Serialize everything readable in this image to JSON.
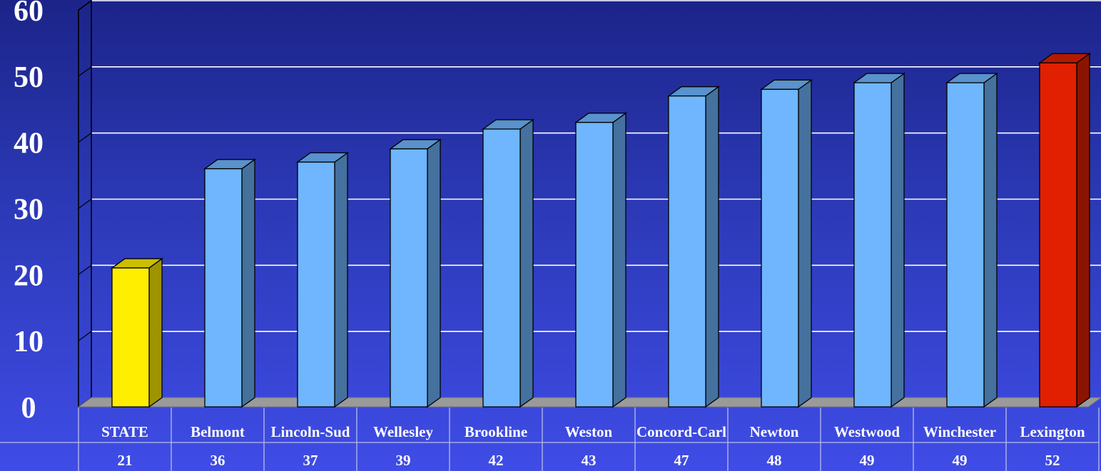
{
  "chart_data": {
    "type": "bar",
    "categories": [
      "STATE",
      "Belmont",
      "Lincoln-Sud",
      "Wellesley",
      "Brookline",
      "Weston",
      "Concord-Carl",
      "Newton",
      "Westwood",
      "Winchester",
      "Lexington"
    ],
    "values": [
      21,
      36,
      37,
      39,
      42,
      43,
      47,
      48,
      49,
      49,
      52
    ],
    "yticks": [
      "0",
      "10",
      "20",
      "30",
      "40",
      "50",
      "60"
    ],
    "ylim": [
      0,
      60
    ],
    "grid": true,
    "bar_style": "3d",
    "data_table": true,
    "colors": {
      "default_bar": "#6fb6ff",
      "state_bar": "#ffee00",
      "highlight_bar": "#e02000",
      "floor": "#9a9a9a",
      "gridline": "#ffffff"
    },
    "highlight": {
      "STATE": "state_bar",
      "Lexington": "highlight_bar"
    }
  }
}
